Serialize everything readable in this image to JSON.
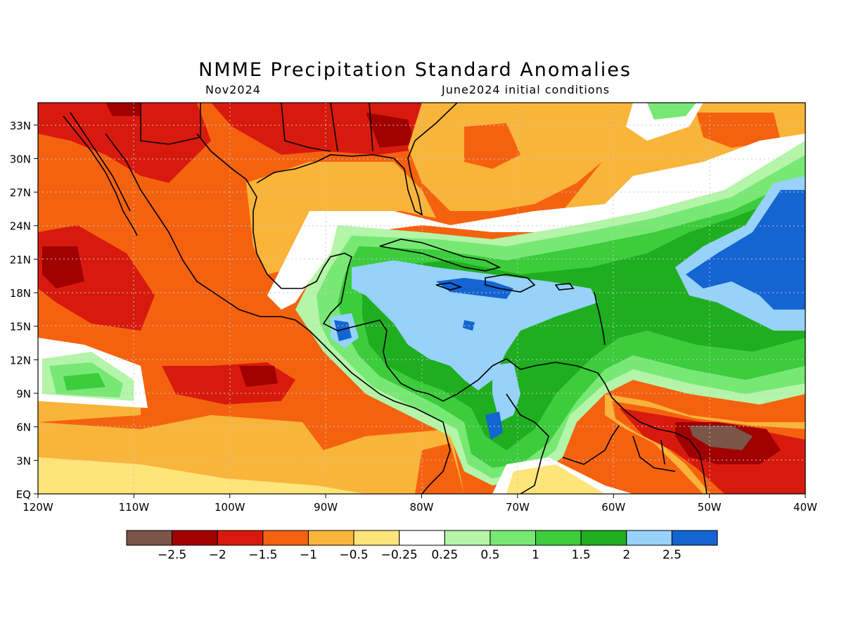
{
  "title": "NMME Precipitation Standard Anomalies",
  "subtitle_left": "Nov2024",
  "subtitle_right": "June2024 initial conditions",
  "lat_labels": [
    "33N",
    "30N",
    "27N",
    "24N",
    "21N",
    "18N",
    "15N",
    "12N",
    "9N",
    "6N",
    "3N",
    "EQ"
  ],
  "lat_values": [
    33,
    30,
    27,
    24,
    21,
    18,
    15,
    12,
    9,
    6,
    3,
    0
  ],
  "lon_labels": [
    "120W",
    "110W",
    "100W",
    "90W",
    "80W",
    "70W",
    "60W",
    "50W",
    "40W"
  ],
  "lon_values": [
    -120,
    -110,
    -100,
    -90,
    -80,
    -70,
    -60,
    -50,
    -40
  ],
  "colorbar": {
    "colors": [
      "#7a5548",
      "#a00000",
      "#d81a0e",
      "#f5620f",
      "#f9b43a",
      "#fde57a",
      "#ffffff",
      "#b4f5a9",
      "#78e874",
      "#3ccc3c",
      "#1fae1f",
      "#96d2fa",
      "#1464d2"
    ],
    "labels": [
      "-2.5",
      "-2",
      "-1.5",
      "-1",
      "-0.5",
      "-0.25",
      "0.25",
      "0.5",
      "1",
      "1.5",
      "2",
      "2.5"
    ]
  }
}
